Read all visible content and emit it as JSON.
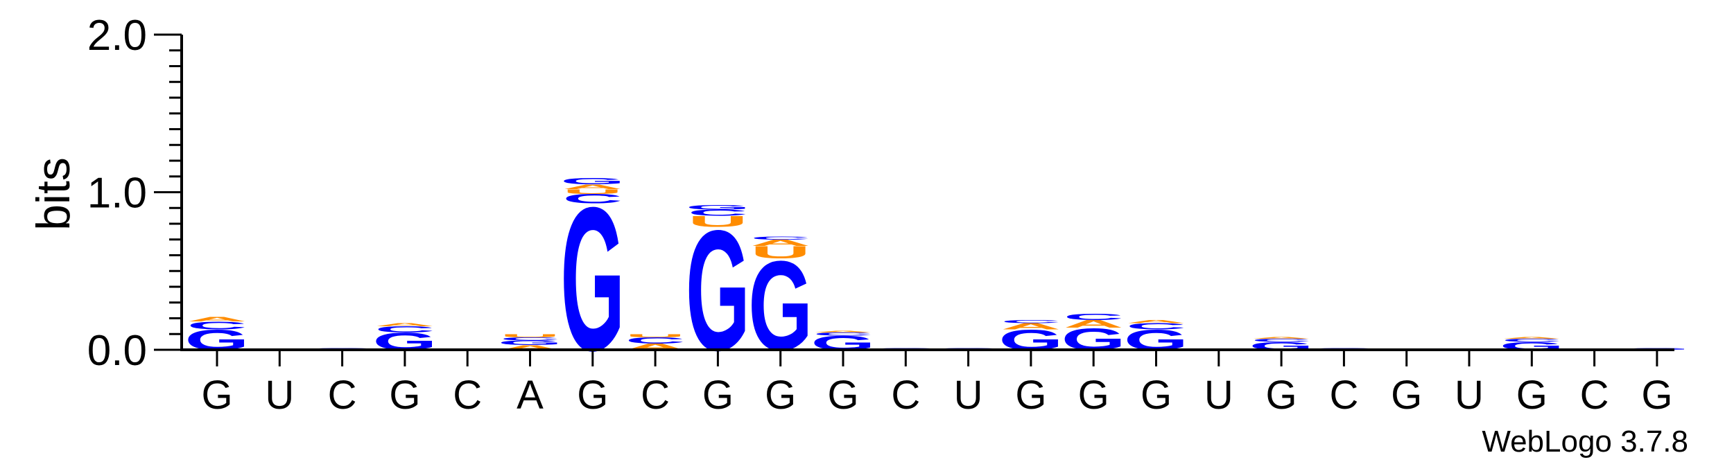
{
  "chart_data": {
    "type": "sequence-logo",
    "ylabel": "bits",
    "ylim": [
      0,
      2.0
    ],
    "y_ticks": [
      "0.0",
      "1.0",
      "2.0"
    ],
    "positions": [
      "G",
      "U",
      "C",
      "G",
      "C",
      "A",
      "G",
      "C",
      "G",
      "G",
      "G",
      "C",
      "U",
      "G",
      "G",
      "G",
      "U",
      "G",
      "C",
      "G",
      "U",
      "G",
      "C",
      "G"
    ],
    "columns": [
      [
        {
          "l": "G",
          "h": 0.13
        },
        {
          "l": "C",
          "h": 0.05
        },
        {
          "l": "A",
          "h": 0.03
        }
      ],
      [],
      [
        {
          "l": "G",
          "h": 0.01
        }
      ],
      [
        {
          "l": "G",
          "h": 0.11
        },
        {
          "l": "C",
          "h": 0.04
        },
        {
          "l": "A",
          "h": 0.02
        }
      ],
      [],
      [
        {
          "l": "A",
          "h": 0.03
        },
        {
          "l": "G",
          "h": 0.03
        },
        {
          "l": "C",
          "h": 0.02
        },
        {
          "l": "U",
          "h": 0.02
        }
      ],
      [
        {
          "l": "G",
          "h": 0.93
        },
        {
          "l": "C",
          "h": 0.06
        },
        {
          "l": "U",
          "h": 0.03
        },
        {
          "l": "A",
          "h": 0.03
        },
        {
          "l": "G",
          "h": 0.04
        }
      ],
      [
        {
          "l": "A",
          "h": 0.04
        },
        {
          "l": "C",
          "h": 0.04
        },
        {
          "l": "U",
          "h": 0.02
        }
      ],
      [
        {
          "l": "G",
          "h": 0.78
        },
        {
          "l": "U",
          "h": 0.07
        },
        {
          "l": "C",
          "h": 0.04
        },
        {
          "l": "G",
          "h": 0.03
        }
      ],
      [
        {
          "l": "G",
          "h": 0.58
        },
        {
          "l": "U",
          "h": 0.08
        },
        {
          "l": "A",
          "h": 0.04
        },
        {
          "l": "C",
          "h": 0.02
        }
      ],
      [
        {
          "l": "G",
          "h": 0.09
        },
        {
          "l": "C",
          "h": 0.02
        },
        {
          "l": "A",
          "h": 0.01
        }
      ],
      [
        {
          "l": "G",
          "h": 0.01
        }
      ],
      [
        {
          "l": "G",
          "h": 0.01
        }
      ],
      [
        {
          "l": "G",
          "h": 0.13
        },
        {
          "l": "A",
          "h": 0.04
        },
        {
          "l": "C",
          "h": 0.02
        }
      ],
      [
        {
          "l": "G",
          "h": 0.14
        },
        {
          "l": "A",
          "h": 0.05
        },
        {
          "l": "C",
          "h": 0.04
        }
      ],
      [
        {
          "l": "G",
          "h": 0.13
        },
        {
          "l": "C",
          "h": 0.04
        },
        {
          "l": "A",
          "h": 0.02
        }
      ],
      [],
      [
        {
          "l": "G",
          "h": 0.05
        },
        {
          "l": "C",
          "h": 0.02
        },
        {
          "l": "A",
          "h": 0.01
        }
      ],
      [
        {
          "l": "G",
          "h": 0.01
        }
      ],
      [],
      [],
      [
        {
          "l": "G",
          "h": 0.05
        },
        {
          "l": "C",
          "h": 0.02
        },
        {
          "l": "A",
          "h": 0.01
        }
      ],
      [],
      [
        {
          "l": "G",
          "h": 0.01
        }
      ]
    ],
    "colors": {
      "G": "#0000ff",
      "C": "#0000ff",
      "A": "#ff8c00",
      "U": "#ff8c00"
    }
  },
  "credit": "WebLogo 3.7.8"
}
